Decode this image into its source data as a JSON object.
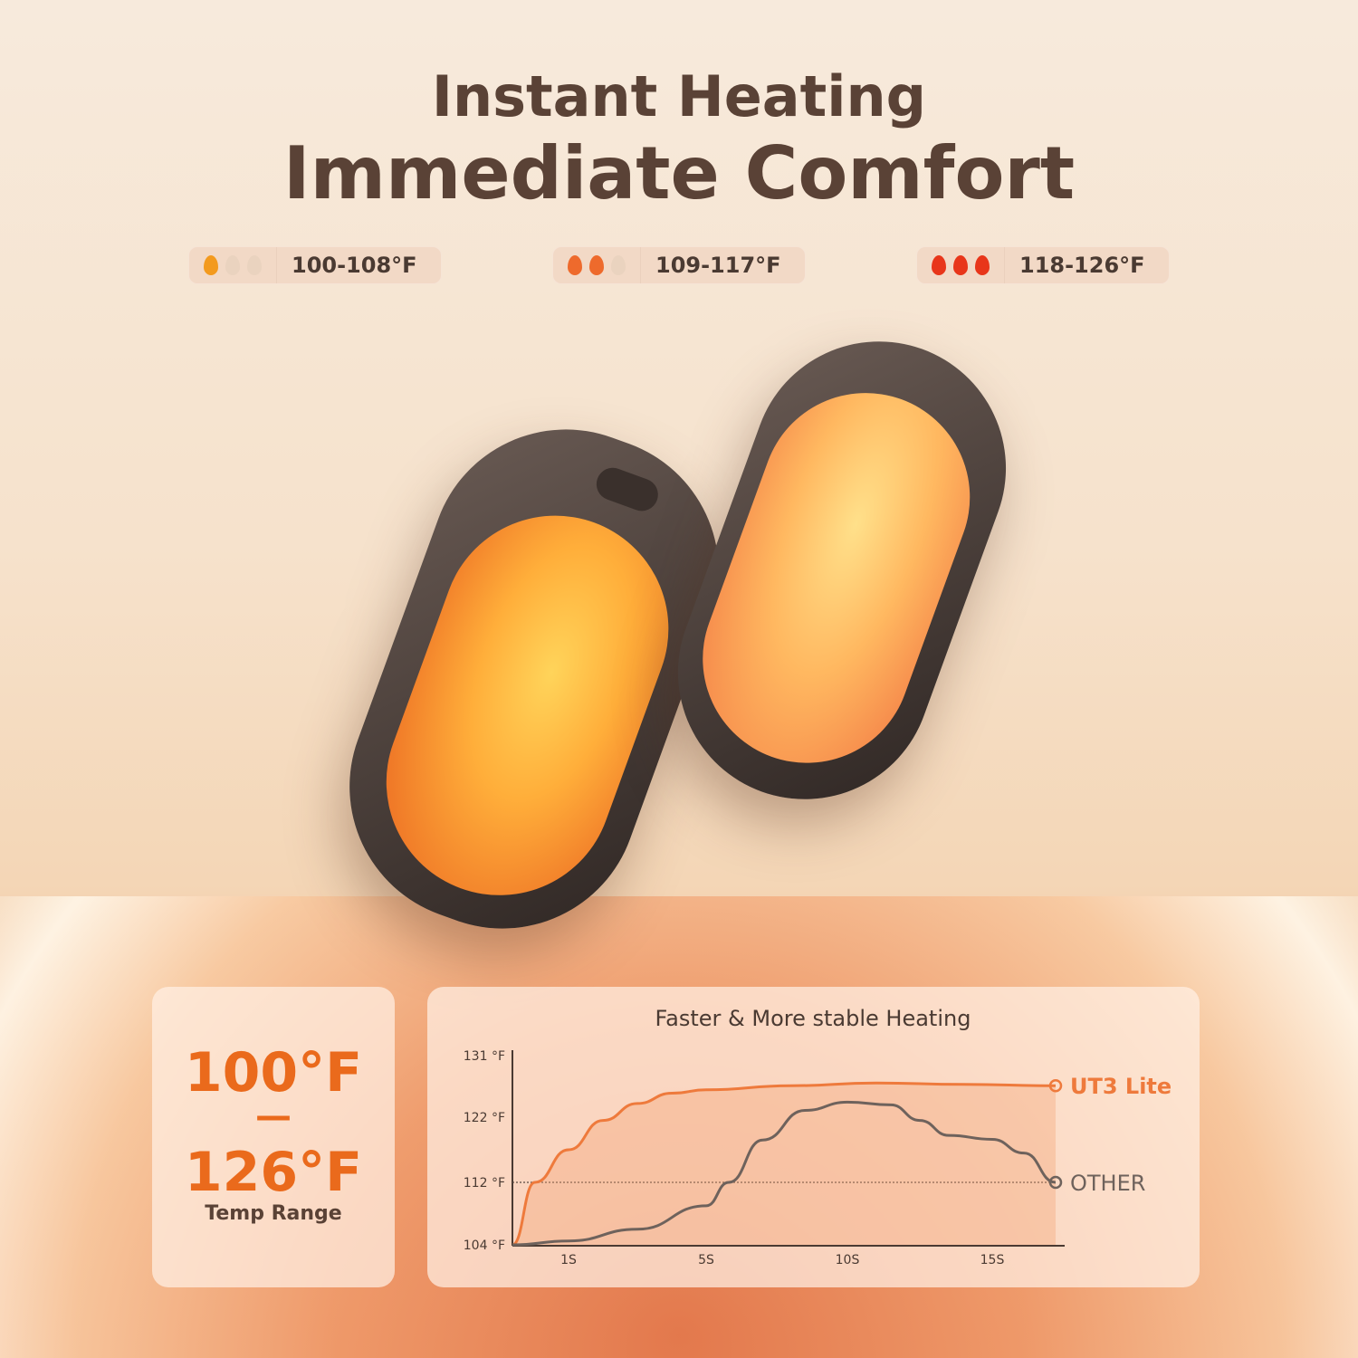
{
  "heading": {
    "line1": "Instant Heating",
    "line2": "Immediate Comfort"
  },
  "levels": [
    {
      "flames_active": 1,
      "range": "100-108°F",
      "color": "#f39a1e"
    },
    {
      "flames_active": 2,
      "range": "109-117°F",
      "color": "#ee6a2c"
    },
    {
      "flames_active": 3,
      "range": "118-126°F",
      "color": "#e8361a"
    }
  ],
  "temp_range": {
    "low": "100°F",
    "dash": "—",
    "high": "126°F",
    "label": "Temp Range"
  },
  "chart_data": {
    "type": "line",
    "title": "Faster & More stable Heating",
    "y_ticks": [
      "131 °F",
      "122 °F",
      "112 °F",
      "104 °F"
    ],
    "x_ticks": [
      "1S",
      "5S",
      "10S",
      "15S"
    ],
    "reference_line": 112,
    "series": [
      {
        "name": "UT3 Lite",
        "color": "#ee7a3c",
        "points": [
          [
            0,
            104
          ],
          [
            0.4,
            112
          ],
          [
            1,
            117
          ],
          [
            2,
            121.5
          ],
          [
            3,
            124
          ],
          [
            4,
            125.5
          ],
          [
            5,
            126
          ],
          [
            8,
            126.6
          ],
          [
            11,
            127
          ],
          [
            14,
            126.8
          ],
          [
            17,
            126.6
          ]
        ]
      },
      {
        "name": "OTHER",
        "color": "#6e625c",
        "points": [
          [
            0,
            104
          ],
          [
            1,
            104.5
          ],
          [
            3,
            106
          ],
          [
            5,
            109
          ],
          [
            5.8,
            112
          ],
          [
            7,
            118.5
          ],
          [
            8.5,
            123
          ],
          [
            10,
            124.2
          ],
          [
            11.5,
            123.8
          ],
          [
            12.5,
            121.5
          ],
          [
            13.5,
            119.2
          ],
          [
            15,
            118.6
          ],
          [
            16,
            116.5
          ],
          [
            17,
            112
          ]
        ]
      }
    ]
  }
}
